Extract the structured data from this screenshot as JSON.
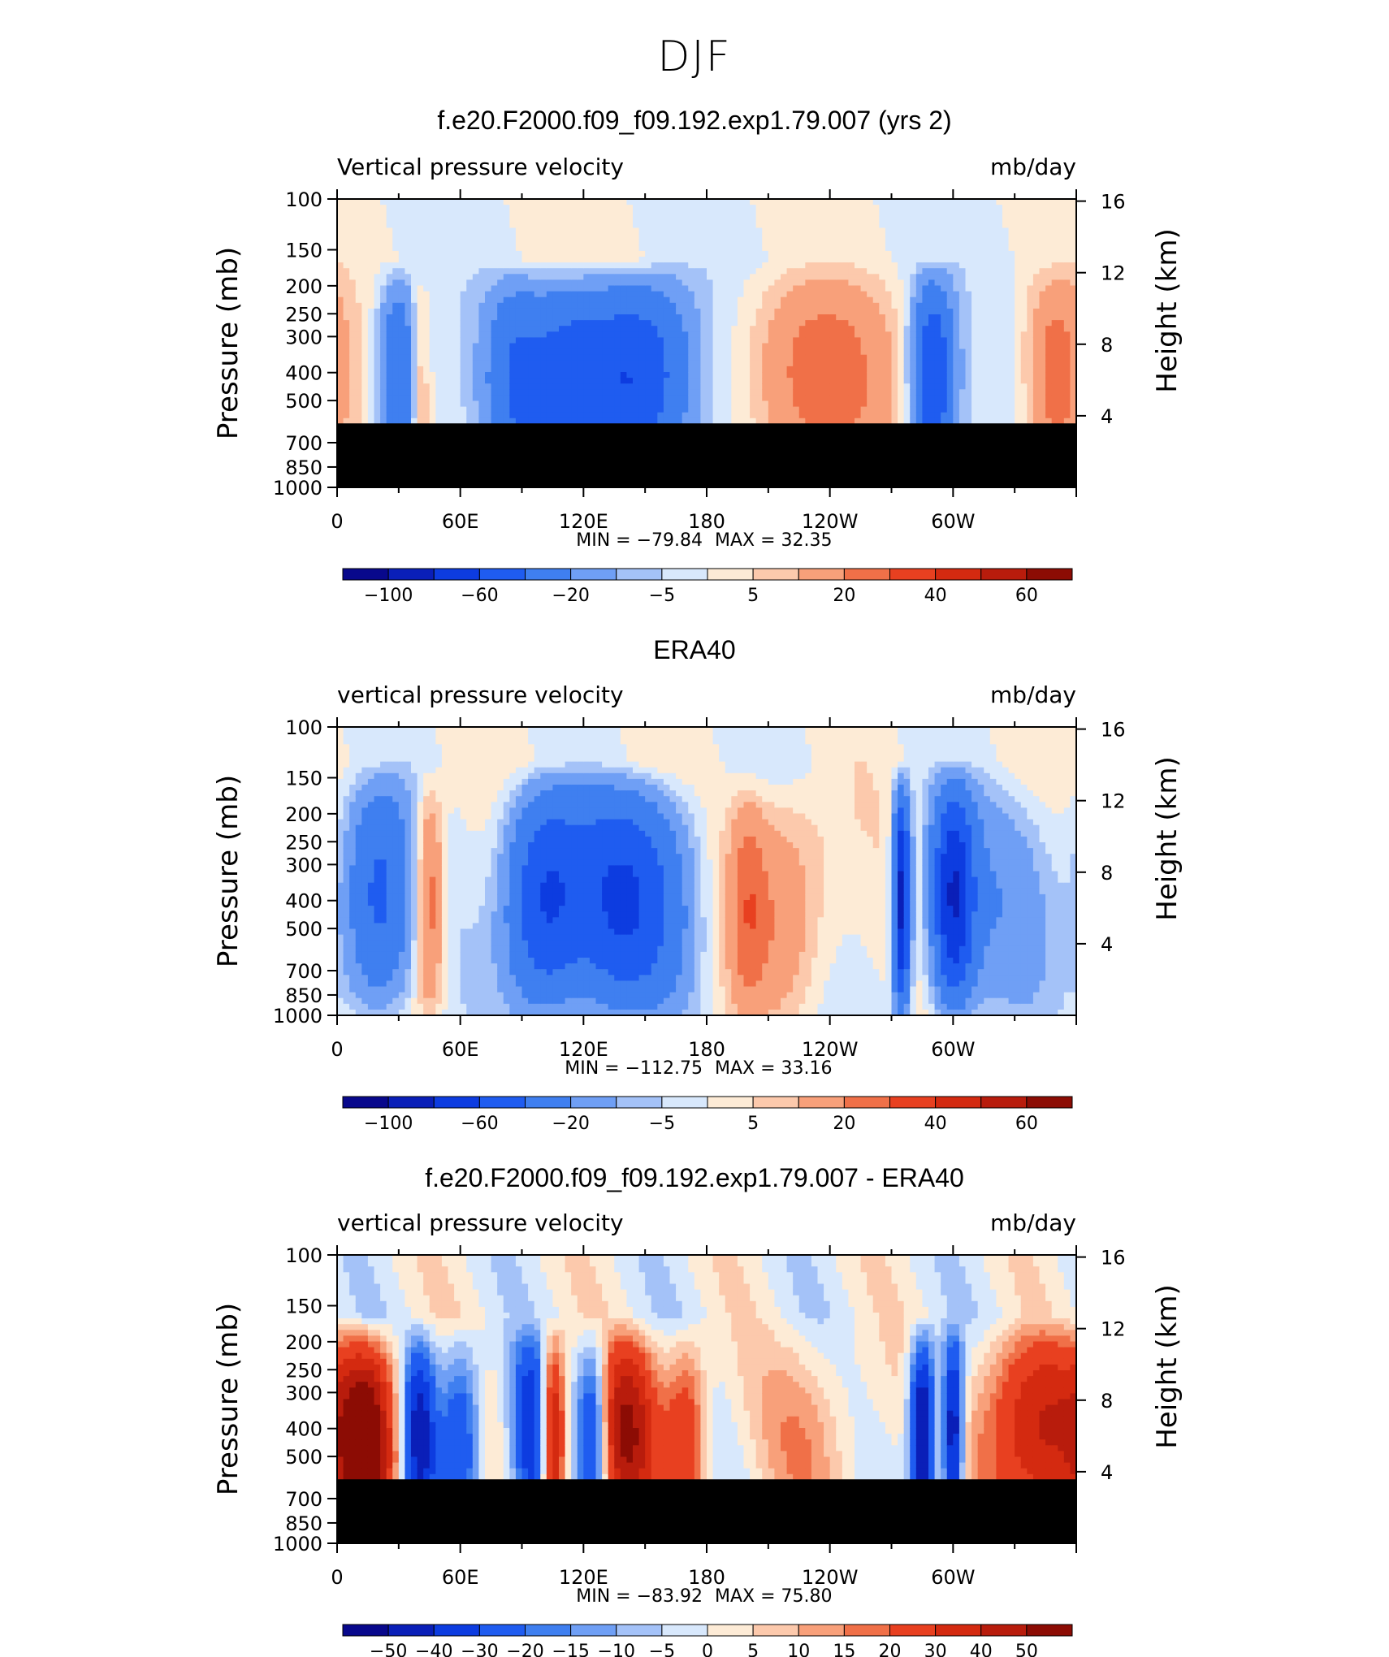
{
  "main_title": "DJF",
  "colors": {
    "mask": "#000000",
    "scale_full": [
      "#08088c",
      "#0a1fb8",
      "#0d3ce0",
      "#1f5cf0",
      "#3f7ff0",
      "#6f9ff5",
      "#a4c2f8",
      "#d8e8fc",
      "#fdebd6",
      "#fcc9ac",
      "#f8a07a",
      "#f07048",
      "#e84020",
      "#d42a10",
      "#b81c0c",
      "#8c0c04"
    ],
    "scale_diff": [
      "#08088c",
      "#0a1fb8",
      "#0d3ce0",
      "#1f5cf0",
      "#3f7ff0",
      "#6f9ff5",
      "#a4c2f8",
      "#d8e8fc",
      "#fdebd6",
      "#fcc9ac",
      "#f8a07a",
      "#f07048",
      "#e84020",
      "#d42a10",
      "#b81c0c",
      "#8c0c04"
    ]
  },
  "chart_data": [
    {
      "type": "heatmap",
      "title": "f.e20.F2000.f09_f09.192.exp1.79.007 (yrs 2)",
      "variable": "Vertical pressure velocity",
      "units": "mb/day",
      "ylabel": "Pressure (mb)",
      "ylabel_right": "Height (km)",
      "y_ticks": [
        "100",
        "150",
        "200",
        "250",
        "300",
        "400",
        "500",
        "700",
        "850",
        "1000"
      ],
      "y_right_ticks": [
        "16",
        "12",
        "8",
        "4"
      ],
      "x_ticks": [
        "0",
        "60E",
        "120E",
        "180",
        "120W",
        "60W"
      ],
      "min_label": "MIN = −79.84",
      "max_label": "MAX = 32.35",
      "min": -79.84,
      "max": 32.35,
      "colorbar_labels": [
        "−100",
        "−60",
        "−20",
        "−5",
        "5",
        "20",
        "40",
        "60"
      ],
      "colorbar_scale": "full",
      "masked_below_mb": 600
    },
    {
      "type": "heatmap",
      "title": "ERA40",
      "variable": "vertical pressure velocity",
      "units": "mb/day",
      "ylabel": "Pressure (mb)",
      "ylabel_right": "Height (km)",
      "y_ticks": [
        "100",
        "150",
        "200",
        "250",
        "300",
        "400",
        "500",
        "700",
        "850",
        "1000"
      ],
      "y_right_ticks": [
        "16",
        "12",
        "8",
        "4"
      ],
      "x_ticks": [
        "0",
        "60E",
        "120E",
        "180",
        "120W",
        "60W"
      ],
      "min_label": "MIN = −112.75",
      "max_label": "MAX = 33.16",
      "min": -112.75,
      "max": 33.16,
      "colorbar_labels": [
        "−100",
        "−60",
        "−20",
        "−5",
        "5",
        "20",
        "40",
        "60"
      ],
      "colorbar_scale": "full",
      "masked_below_mb": null
    },
    {
      "type": "heatmap",
      "title": "f.e20.F2000.f09_f09.192.exp1.79.007 - ERA40",
      "variable": "vertical pressure velocity",
      "units": "mb/day",
      "ylabel": "Pressure (mb)",
      "ylabel_right": "Height (km)",
      "y_ticks": [
        "100",
        "150",
        "200",
        "250",
        "300",
        "400",
        "500",
        "700",
        "850",
        "1000"
      ],
      "y_right_ticks": [
        "16",
        "12",
        "8",
        "4"
      ],
      "x_ticks": [
        "0",
        "60E",
        "120E",
        "180",
        "120W",
        "60W"
      ],
      "min_label": "MIN = −83.92",
      "max_label": "MAX = 75.80",
      "min": -83.92,
      "max": 75.8,
      "colorbar_labels": [
        "−50",
        "−40",
        "−30",
        "−20",
        "−15",
        "−10",
        "−5",
        "0",
        "5",
        "10",
        "15",
        "20",
        "30",
        "40",
        "50"
      ],
      "colorbar_scale": "diff",
      "masked_below_mb": 600
    }
  ]
}
